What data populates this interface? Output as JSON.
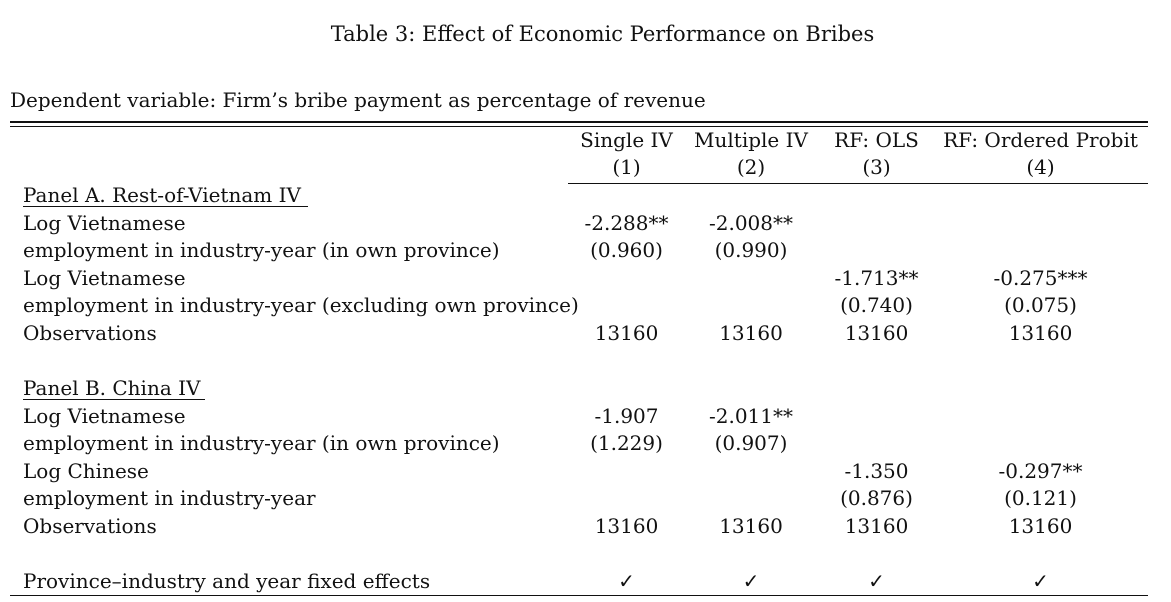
{
  "title": "Table 3: Effect of Economic Performance on Bribes",
  "dependent_variable": "Dependent variable: Firm’s bribe payment as percentage of revenue",
  "columns": [
    {
      "name": "Single IV",
      "num": "(1)"
    },
    {
      "name": "Multiple IV",
      "num": "(2)"
    },
    {
      "name": "RF: OLS",
      "num": "(3)"
    },
    {
      "name": "RF: Ordered Probit",
      "num": "(4)"
    }
  ],
  "panelA": {
    "heading": "Panel A. Rest-of-Vietnam IV",
    "row1": {
      "label1": "Log Vietnamese",
      "label2": "employment in industry-year (in own province)",
      "coef": [
        "-2.288**",
        "-2.008**",
        "",
        ""
      ],
      "se": [
        "(0.960)",
        "(0.990)",
        "",
        ""
      ]
    },
    "row2": {
      "label1": "Log Vietnamese",
      "label2": "employment in industry-year (excluding own province)",
      "coef": [
        "",
        "",
        "-1.713**",
        "-0.275***"
      ],
      "se": [
        "",
        "",
        "(0.740)",
        "(0.075)"
      ]
    },
    "obs": {
      "label": "Observations",
      "values": [
        "13160",
        "13160",
        "13160",
        "13160"
      ]
    }
  },
  "panelB": {
    "heading": "Panel B. China IV",
    "row1": {
      "label1": "Log Vietnamese",
      "label2": "employment in industry-year (in own province)",
      "coef": [
        "-1.907",
        "-2.011**",
        "",
        ""
      ],
      "se": [
        "(1.229)",
        "(0.907)",
        "",
        ""
      ]
    },
    "row2": {
      "label1": "Log Chinese",
      "label2": "employment in industry-year",
      "coef": [
        "",
        "",
        "-1.350",
        "-0.297**"
      ],
      "se": [
        "",
        "",
        "(0.876)",
        "(0.121)"
      ]
    },
    "obs": {
      "label": "Observations",
      "values": [
        "13160",
        "13160",
        "13160",
        "13160"
      ]
    }
  },
  "fixed_effects": {
    "label": "Province–industry and year fixed effects",
    "values": [
      "✓",
      "✓",
      "✓",
      "✓"
    ]
  }
}
